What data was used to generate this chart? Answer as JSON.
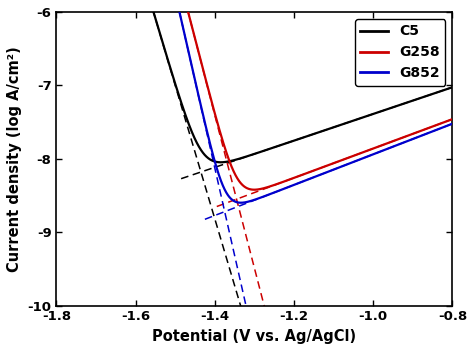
{
  "title": "",
  "xlabel": "Potential (V vs. Ag/AgCl)",
  "ylabel": "Current density (log A/cm²)",
  "xlim": [
    -1.8,
    -0.8
  ],
  "ylim": [
    -10,
    -6
  ],
  "xticks": [
    -1.8,
    -1.6,
    -1.4,
    -1.2,
    -1.0,
    -0.8
  ],
  "yticks": [
    -10,
    -9,
    -8,
    -7,
    -6
  ],
  "legend_labels": [
    "C5",
    "G258",
    "G852"
  ],
  "legend_colors": [
    "#000000",
    "#cc0000",
    "#0000cc"
  ],
  "bg_color": "#ffffff",
  "curves": {
    "C5": {
      "color": "#000000",
      "Ecorr": -1.435,
      "icorr": -8.18,
      "ba": 0.55,
      "bc": 0.055
    },
    "G258": {
      "color": "#cc0000",
      "Ecorr": -1.345,
      "icorr": -8.55,
      "ba": 0.5,
      "bc": 0.048
    },
    "G852": {
      "color": "#0000cc",
      "Ecorr": -1.375,
      "icorr": -8.72,
      "ba": 0.48,
      "bc": 0.042
    }
  }
}
